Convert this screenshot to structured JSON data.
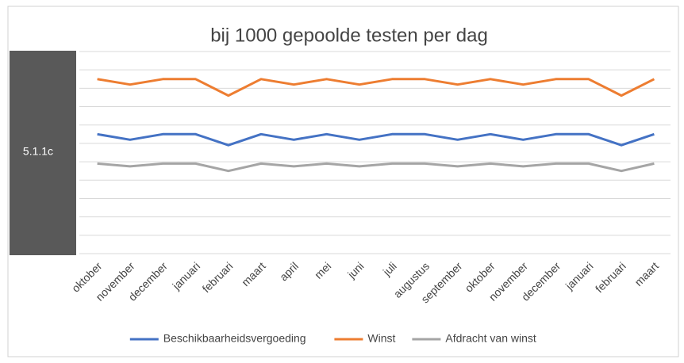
{
  "label": "5.1.1c",
  "chart_data": {
    "type": "line",
    "title": "bij 1000 gepoolde testen per dag",
    "categories": [
      "oktober",
      "november",
      "december",
      "januari",
      "februari",
      "maart",
      "april",
      "mei",
      "juni",
      "juli",
      "augustus",
      "september",
      "oktober",
      "november",
      "december",
      "januari",
      "februari",
      "maart"
    ],
    "series": [
      {
        "name": "Beschikbaarheidsvergoeding",
        "color": "#4472c4",
        "values": [
          6.5,
          6.2,
          6.5,
          6.5,
          5.9,
          6.5,
          6.2,
          6.5,
          6.2,
          6.5,
          6.5,
          6.2,
          6.5,
          6.2,
          6.5,
          6.5,
          5.9,
          6.5
        ]
      },
      {
        "name": "Winst",
        "color": "#ed7d31",
        "values": [
          9.5,
          9.2,
          9.5,
          9.5,
          8.6,
          9.5,
          9.2,
          9.5,
          9.2,
          9.5,
          9.5,
          9.2,
          9.5,
          9.2,
          9.5,
          9.5,
          8.6,
          9.5
        ]
      },
      {
        "name": "Afdracht van winst",
        "color": "#a5a5a5",
        "values": [
          4.9,
          4.75,
          4.9,
          4.9,
          4.5,
          4.9,
          4.75,
          4.9,
          4.75,
          4.9,
          4.9,
          4.75,
          4.9,
          4.75,
          4.9,
          4.9,
          4.5,
          4.9
        ]
      }
    ],
    "ylim": [
      0,
      11
    ],
    "yticks": [
      0,
      1,
      2,
      3,
      4,
      5,
      6,
      7,
      8,
      9,
      10,
      11
    ],
    "grid": true,
    "legend": "bottom"
  }
}
